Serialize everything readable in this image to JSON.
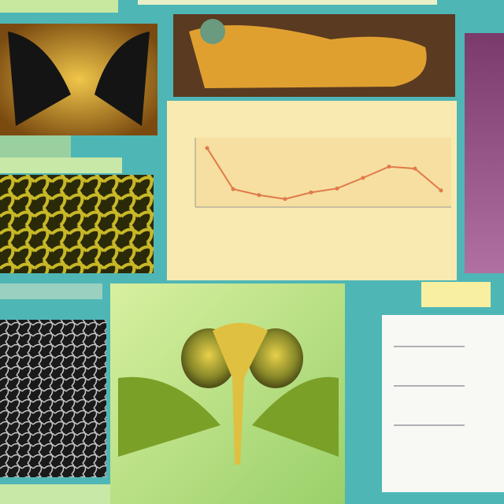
{
  "chart_data": {
    "type": "line",
    "categories": [
      null,
      null,
      null,
      null,
      null,
      null,
      null,
      null,
      null,
      null
    ],
    "values": [
      88,
      26,
      17,
      11,
      21,
      27,
      43,
      60,
      57,
      24
    ],
    "color": "#e07a4a",
    "ylim": [
      0,
      100
    ]
  }
}
